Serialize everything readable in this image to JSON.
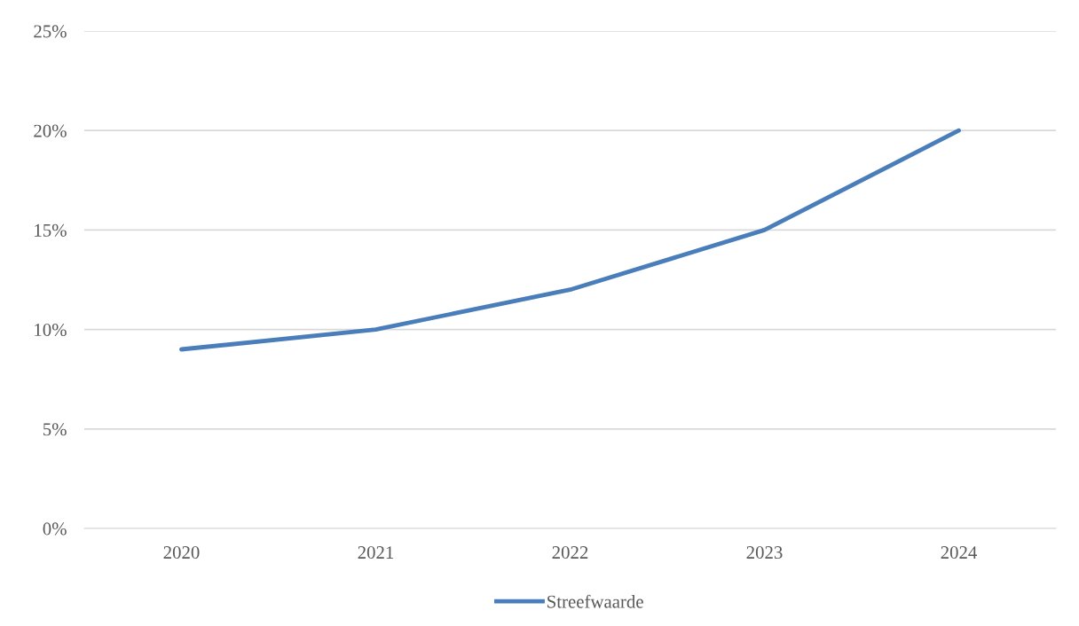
{
  "chart_data": {
    "type": "line",
    "categories": [
      "2020",
      "2021",
      "2022",
      "2023",
      "2024"
    ],
    "series": [
      {
        "name": "Streefwaarde",
        "color": "#4a7ebb",
        "values": [
          9,
          10,
          12,
          15,
          20
        ]
      }
    ],
    "ylim": [
      0,
      25
    ],
    "yticks": [
      {
        "value": 0,
        "label": "0%"
      },
      {
        "value": 5,
        "label": "5%"
      },
      {
        "value": 10,
        "label": "10%"
      },
      {
        "value": 15,
        "label": "15%"
      },
      {
        "value": 20,
        "label": "20%"
      },
      {
        "value": 25,
        "label": "25%"
      }
    ],
    "grid": "y",
    "legend": "bottom",
    "marker": "none",
    "line_style": "solid"
  }
}
